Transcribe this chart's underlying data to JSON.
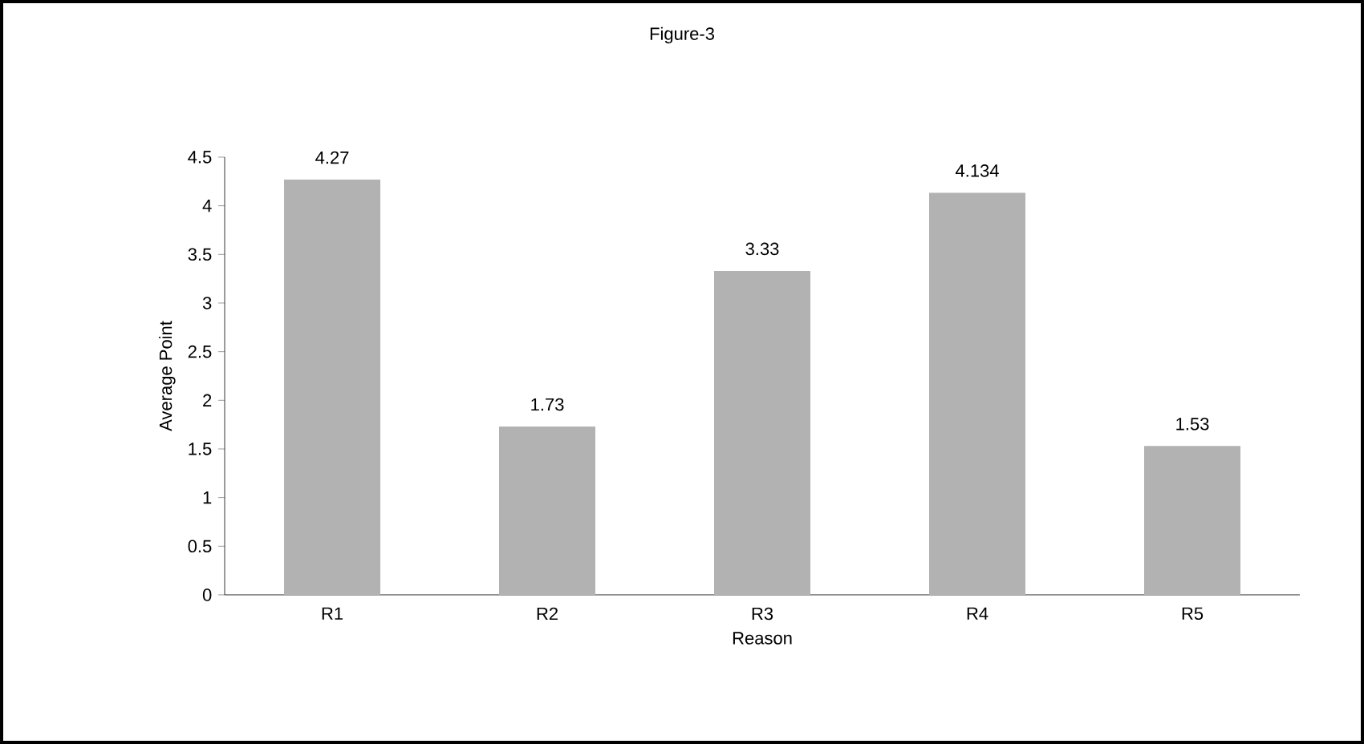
{
  "chart_data": {
    "type": "bar",
    "title": "Figure-3",
    "xlabel": "Reason",
    "ylabel": "Average Point",
    "categories": [
      "R1",
      "R2",
      "R3",
      "R4",
      "R5"
    ],
    "values": [
      4.27,
      1.73,
      3.33,
      4.134,
      1.53
    ],
    "value_labels": [
      "4.27",
      "1.73",
      "3.33",
      "4.134",
      "1.53"
    ],
    "color": "#b2b2b2",
    "ylim": [
      0,
      4.5
    ],
    "yticks": [
      0,
      0.5,
      1,
      1.5,
      2,
      2.5,
      3,
      3.5,
      4,
      4.5
    ],
    "grid": false
  }
}
